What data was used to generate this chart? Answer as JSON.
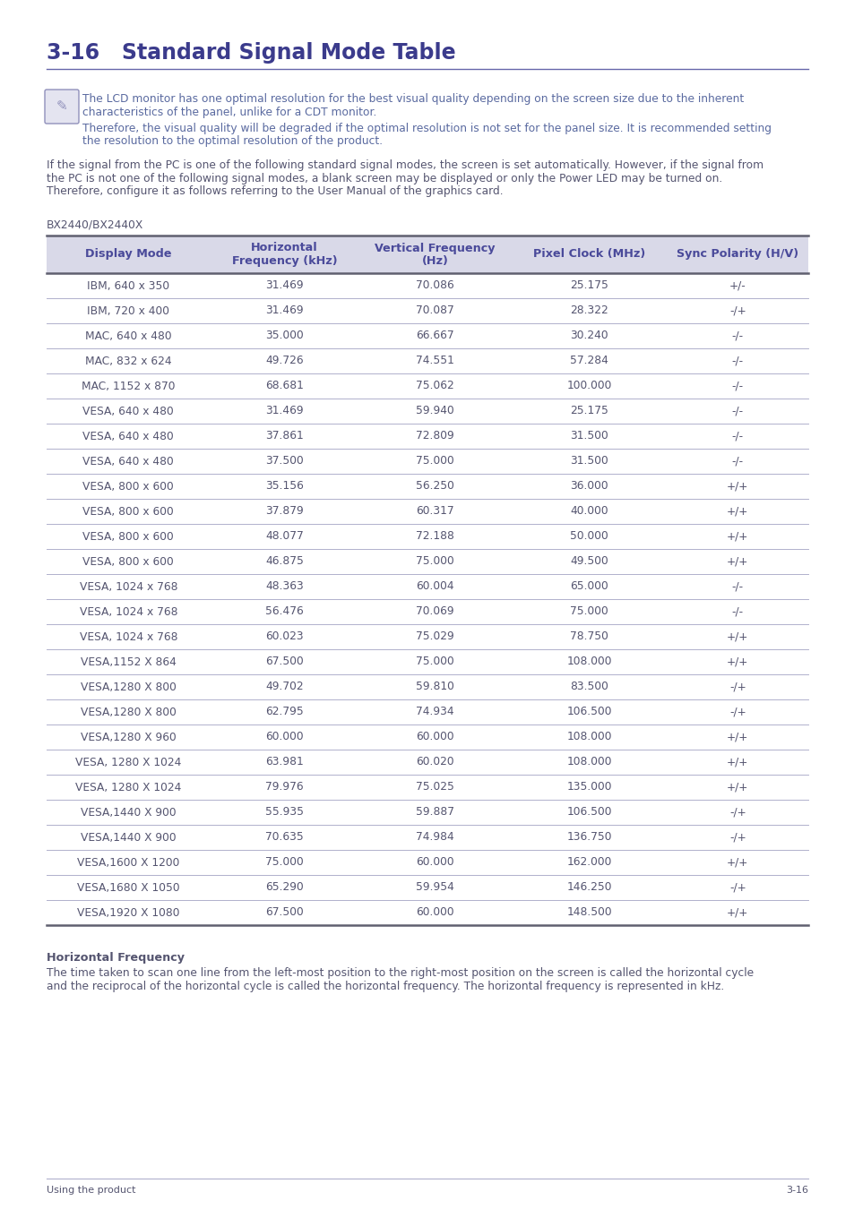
{
  "title": "3-16   Standard Signal Mode Table",
  "note_line1": "The LCD monitor has one optimal resolution for the best visual quality depending on the screen size due to the inherent",
  "note_line2": "characteristics of the panel, unlike for a CDT monitor.",
  "note_line3": "Therefore, the visual quality will be degraded if the optimal resolution is not set for the panel size. It is recommended setting",
  "note_line4": "the resolution to the optimal resolution of the product.",
  "body_line1": "If the signal from the PC is one of the following standard signal modes, the screen is set automatically. However, if the signal from",
  "body_line2": "the PC is not one of the following signal modes, a blank screen may be displayed or only the Power LED may be turned on.",
  "body_line3": "Therefore, configure it as follows referring to the User Manual of the graphics card.",
  "model_label": "BX2440/BX2440X",
  "col_headers": [
    "Display Mode",
    "Horizontal\nFrequency (kHz)",
    "Vertical Frequency\n(Hz)",
    "Pixel Clock (MHz)",
    "Sync Polarity (H/V)"
  ],
  "table_data": [
    [
      "IBM, 640 x 350",
      "31.469",
      "70.086",
      "25.175",
      "+/-"
    ],
    [
      "IBM, 720 x 400",
      "31.469",
      "70.087",
      "28.322",
      "-/+"
    ],
    [
      "MAC, 640 x 480",
      "35.000",
      "66.667",
      "30.240",
      "-/-"
    ],
    [
      "MAC, 832 x 624",
      "49.726",
      "74.551",
      "57.284",
      "-/-"
    ],
    [
      "MAC, 1152 x 870",
      "68.681",
      "75.062",
      "100.000",
      "-/-"
    ],
    [
      "VESA, 640 x 480",
      "31.469",
      "59.940",
      "25.175",
      "-/-"
    ],
    [
      "VESA, 640 x 480",
      "37.861",
      "72.809",
      "31.500",
      "-/-"
    ],
    [
      "VESA, 640 x 480",
      "37.500",
      "75.000",
      "31.500",
      "-/-"
    ],
    [
      "VESA, 800 x 600",
      "35.156",
      "56.250",
      "36.000",
      "+/+"
    ],
    [
      "VESA, 800 x 600",
      "37.879",
      "60.317",
      "40.000",
      "+/+"
    ],
    [
      "VESA, 800 x 600",
      "48.077",
      "72.188",
      "50.000",
      "+/+"
    ],
    [
      "VESA, 800 x 600",
      "46.875",
      "75.000",
      "49.500",
      "+/+"
    ],
    [
      "VESA, 1024 x 768",
      "48.363",
      "60.004",
      "65.000",
      "-/-"
    ],
    [
      "VESA, 1024 x 768",
      "56.476",
      "70.069",
      "75.000",
      "-/-"
    ],
    [
      "VESA, 1024 x 768",
      "60.023",
      "75.029",
      "78.750",
      "+/+"
    ],
    [
      "VESA,1152 X 864",
      "67.500",
      "75.000",
      "108.000",
      "+/+"
    ],
    [
      "VESA,1280 X 800",
      "49.702",
      "59.810",
      "83.500",
      "-/+"
    ],
    [
      "VESA,1280 X 800",
      "62.795",
      "74.934",
      "106.500",
      "-/+"
    ],
    [
      "VESA,1280 X 960",
      "60.000",
      "60.000",
      "108.000",
      "+/+"
    ],
    [
      "VESA, 1280 X 1024",
      "63.981",
      "60.020",
      "108.000",
      "+/+"
    ],
    [
      "VESA, 1280 X 1024",
      "79.976",
      "75.025",
      "135.000",
      "+/+"
    ],
    [
      "VESA,1440 X 900",
      "55.935",
      "59.887",
      "106.500",
      "-/+"
    ],
    [
      "VESA,1440 X 900",
      "70.635",
      "74.984",
      "136.750",
      "-/+"
    ],
    [
      "VESA,1600 X 1200",
      "75.000",
      "60.000",
      "162.000",
      "+/+"
    ],
    [
      "VESA,1680 X 1050",
      "65.290",
      "59.954",
      "146.250",
      "-/+"
    ],
    [
      "VESA,1920 X 1080",
      "67.500",
      "60.000",
      "148.500",
      "+/+"
    ]
  ],
  "footer_bold": "Horizontal Frequency",
  "footer_line1": "The time taken to scan one line from the left-most position to the right-most position on the screen is called the horizontal cycle",
  "footer_line2": "and the reciprocal of the horizontal cycle is called the horizontal frequency. The horizontal frequency is represented in kHz.",
  "bottom_left": "Using the product",
  "bottom_right": "3-16",
  "title_color": "#3b3b8c",
  "header_text_color": "#4a4a9a",
  "header_bg_color": "#d9d9e8",
  "row_text_color": "#555570",
  "note_text_color": "#5a6aa0",
  "body_text_color": "#555570",
  "title_line_color": "#6666aa",
  "row_line_color": "#b0b0cc",
  "outer_line_color": "#606070",
  "bottom_line_color": "#b0b0cc",
  "icon_border_color": "#9090bb",
  "icon_bg_color": "#e4e4f0"
}
